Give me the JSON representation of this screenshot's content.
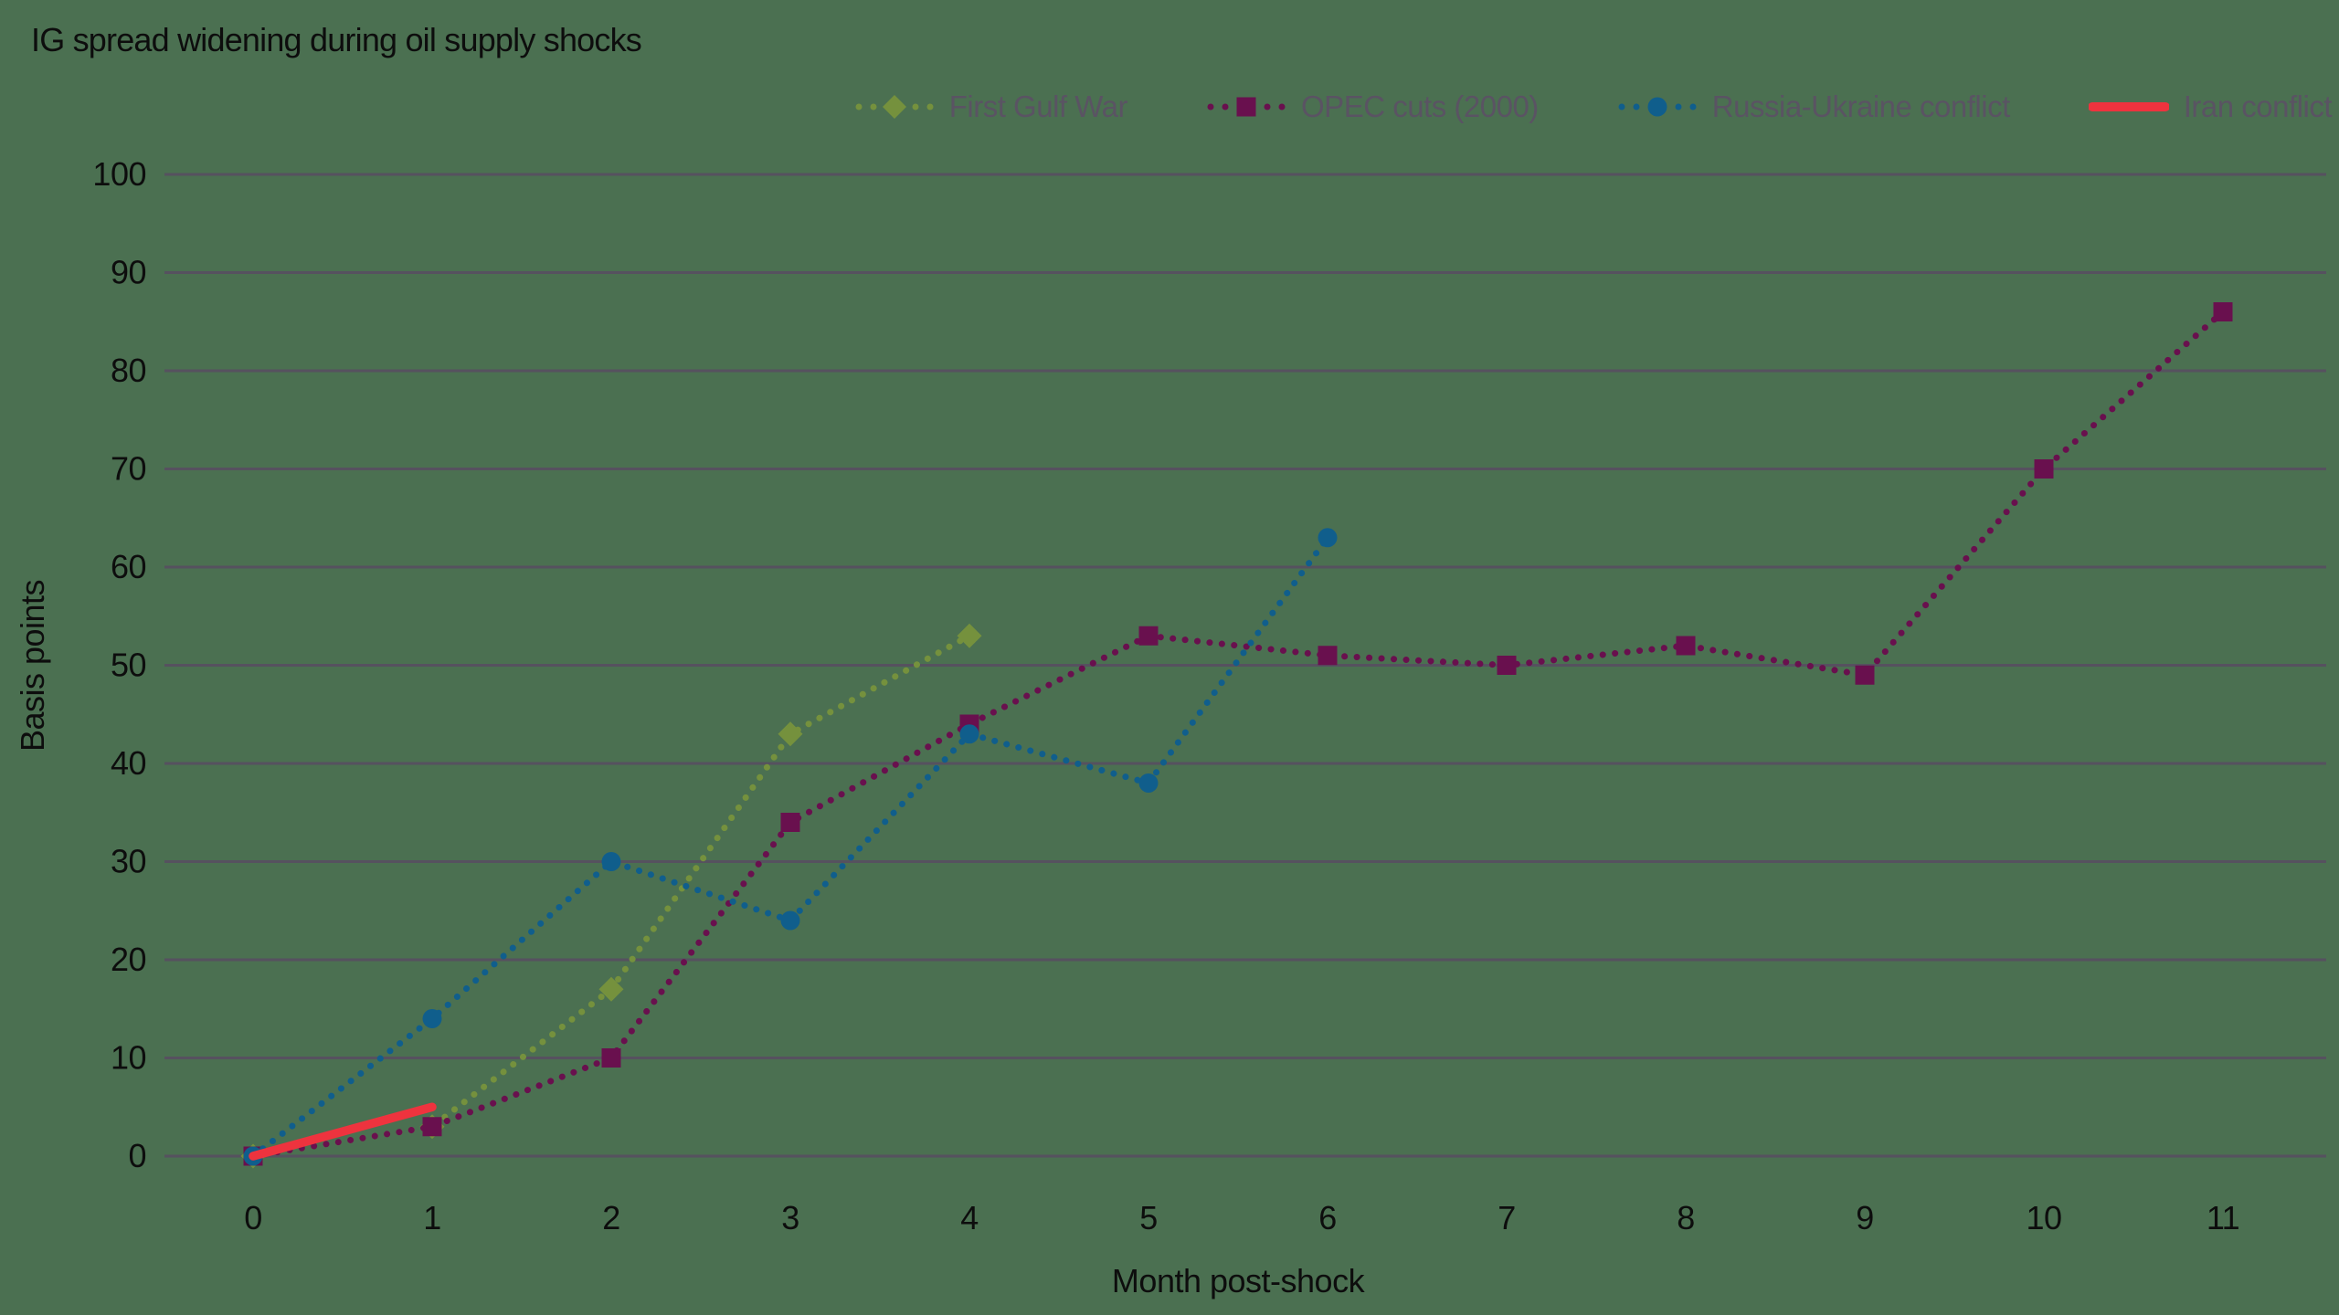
{
  "title": "IG spread widening during oil supply shocks",
  "colors": {
    "background": "#4B7051",
    "gridline": "#56515F",
    "text": "#0d0d0d",
    "legend_text": "#5A5363",
    "first_gulf_war": "#75913D",
    "opec_cuts": "#69104E",
    "russia_ukraine": "#105E8C",
    "iran_conflict": "#EE333E"
  },
  "chart_data": {
    "type": "line",
    "title": "IG spread widening during oil supply shocks",
    "xlabel": "Month post-shock",
    "ylabel": "Basis points",
    "xlim": [
      0,
      11
    ],
    "ylim": [
      0,
      100
    ],
    "x_ticks": [
      0,
      1,
      2,
      3,
      4,
      5,
      6,
      7,
      8,
      9,
      10,
      11
    ],
    "y_ticks": [
      0,
      10,
      20,
      30,
      40,
      50,
      60,
      70,
      80,
      90,
      100
    ],
    "grid": "horizontal",
    "legend_position": "top",
    "series": [
      {
        "name": "First Gulf War",
        "color": "#75913D",
        "marker": "diamond",
        "line_style": "dotted",
        "x": [
          0,
          1,
          2,
          3,
          4
        ],
        "values": [
          0,
          3,
          17,
          43,
          53
        ]
      },
      {
        "name": "OPEC cuts (2000)",
        "color": "#69104E",
        "marker": "square",
        "line_style": "dotted",
        "x": [
          0,
          1,
          2,
          3,
          4,
          5,
          6,
          7,
          8,
          9,
          10,
          11
        ],
        "values": [
          0,
          3,
          10,
          34,
          44,
          53,
          51,
          50,
          52,
          49,
          70,
          86
        ]
      },
      {
        "name": "Russia-Ukraine conflict",
        "color": "#105E8C",
        "marker": "circle",
        "line_style": "dotted",
        "x": [
          0,
          1,
          2,
          3,
          4,
          5,
          6
        ],
        "values": [
          0,
          14,
          30,
          24,
          43,
          38,
          63
        ]
      },
      {
        "name": "Iran conflict",
        "color": "#EE333E",
        "marker": "none",
        "line_style": "solid",
        "x": [
          0,
          1
        ],
        "values": [
          0,
          5
        ]
      }
    ]
  }
}
